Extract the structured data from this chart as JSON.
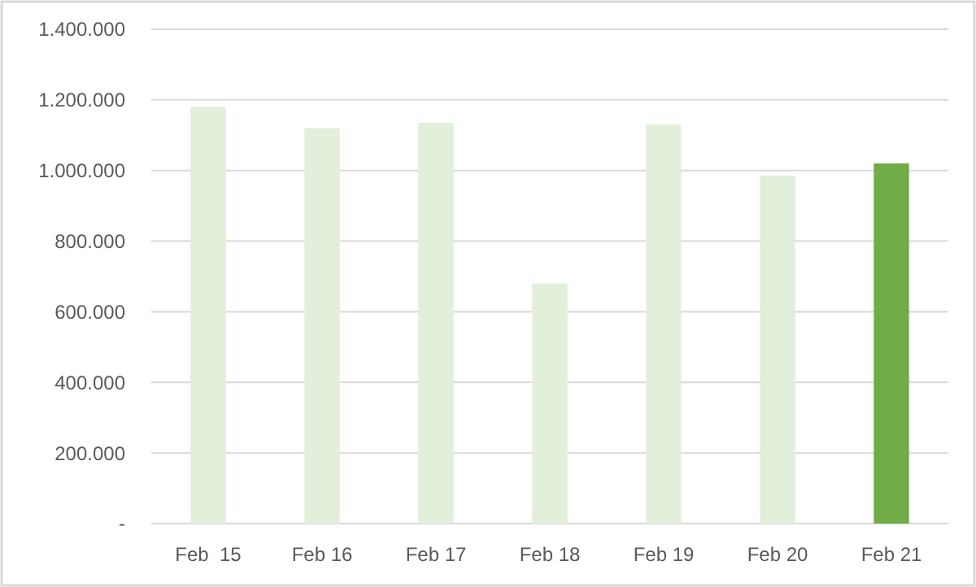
{
  "chart_data": {
    "type": "bar",
    "categories": [
      "Feb  15",
      "Feb 16",
      "Feb 17",
      "Feb 18",
      "Feb 19",
      "Feb 20",
      "Feb 21"
    ],
    "values": [
      1180000,
      1120000,
      1135000,
      680000,
      1130000,
      985000,
      1020000
    ],
    "colors": [
      "#e2efda",
      "#e2efda",
      "#e2efda",
      "#e2efda",
      "#e2efda",
      "#e2efda",
      "#70ad47"
    ],
    "ylim": [
      0,
      1400000
    ],
    "yticks": [
      {
        "value": 0,
        "label": "-"
      },
      {
        "value": 200000,
        "label": "200.000"
      },
      {
        "value": 400000,
        "label": "400.000"
      },
      {
        "value": 600000,
        "label": "600.000"
      },
      {
        "value": 800000,
        "label": "800.000"
      },
      {
        "value": 1000000,
        "label": "1.000.000"
      },
      {
        "value": 1200000,
        "label": "1.200.000"
      },
      {
        "value": 1400000,
        "label": "1.400.000"
      }
    ],
    "grid": "y"
  }
}
